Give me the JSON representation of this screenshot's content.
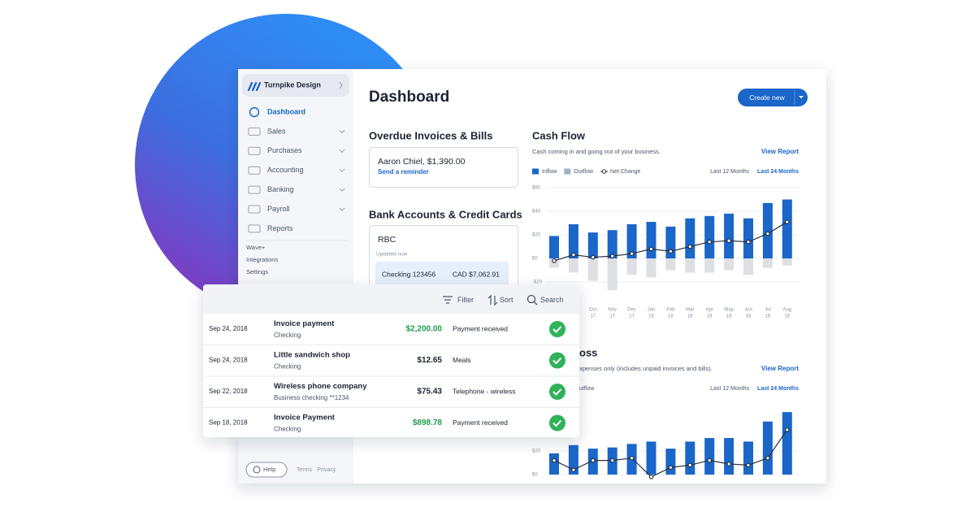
{
  "sidebar": {
    "company": "Turnpike Design",
    "nav": [
      "Dashboard",
      "Sales",
      "Purchases",
      "Accounting",
      "Banking",
      "Payroll",
      "Reports"
    ],
    "links": [
      "Wave+",
      "Integrations",
      "Settings"
    ],
    "help": "Help",
    "footer": "Terms · Privacy"
  },
  "header": {
    "title": "Dashboard",
    "button": "Create new"
  },
  "overdue": {
    "title": "Overdue Invoices & Bills",
    "item": "Aaron Chiel, $1,390.00",
    "action": "Send a reminder"
  },
  "bank": {
    "title": "Bank Accounts & Credit Cards",
    "name": "RBC",
    "status": "Updated now",
    "account": "Checking 123456",
    "balance": "CAD $7,062.91"
  },
  "transactions": {
    "toolbar": [
      "Filter",
      "Sort",
      "Search"
    ],
    "rows": [
      {
        "date": "Sep 24, 2018",
        "payee": "Invoice payment",
        "account": "Checking",
        "amount": "$2,200.00",
        "color": "#1e9e4a",
        "category": "Payment received"
      },
      {
        "date": "Sep 24, 2018",
        "payee": "Little sandwich shop",
        "account": "Checking",
        "amount": "$12.65",
        "color": "#1c2333",
        "category": "Meals"
      },
      {
        "date": "Sep 22, 2018",
        "payee": "Wireless phone company",
        "account": "Business checking **1234",
        "amount": "$75.43",
        "color": "#1c2333",
        "category": "Telephone - wireless"
      },
      {
        "date": "Sep 18, 2018",
        "payee": "Invoice Payment",
        "account": "Checking",
        "amount": "$898.78",
        "color": "#1e9e4a",
        "category": "Payment received"
      }
    ]
  },
  "chart_data": [
    {
      "type": "bar",
      "title": "Cash Flow",
      "subtitle": "Cash coming in and going out of your business.",
      "link": "View Report",
      "ranges": [
        "Last 12 Months",
        "Last 24 Months"
      ],
      "months": [
        null,
        null,
        "Oct",
        "Nov",
        "Dec",
        "Jan",
        "Feb",
        "Mar",
        "Apr",
        "May",
        "Jun",
        "Jul",
        "Aug"
      ],
      "years": [
        null,
        null,
        "17",
        "17",
        "17",
        "18",
        "18",
        "18",
        "18",
        "18",
        "18",
        "18",
        "18"
      ],
      "series": [
        {
          "name": "Inflow",
          "color": "#1a66c9",
          "values": [
            19,
            29,
            22,
            24,
            29,
            31,
            27,
            34,
            36,
            38,
            34,
            47,
            50
          ]
        },
        {
          "name": "Outflow",
          "color": "#dddfe3",
          "values": [
            -8,
            -12,
            -19,
            -27,
            -14,
            -16,
            -10,
            -12,
            -12,
            -10,
            -14,
            -8,
            -6
          ]
        },
        {
          "name": "Net Change",
          "color": "#2b2f38",
          "type": "line",
          "values": [
            -2,
            3,
            1,
            2,
            4,
            8,
            6,
            10,
            14,
            15,
            14,
            21,
            31
          ]
        }
      ],
      "ylim": [
        -30,
        60
      ],
      "yticks": [
        {
          "value": 60,
          "label": "$60"
        },
        {
          "value": 40,
          "label": "$40"
        },
        {
          "value": 20,
          "label": "$20"
        },
        {
          "value": 0,
          "label": "$0"
        },
        {
          "value": -20,
          "label": "-$20"
        }
      ],
      "grid": true
    },
    {
      "type": "bar",
      "title": "oss",
      "subtitle": "xpenses only (includes unpaid invoices and bills).",
      "link": "View Report",
      "legend": "utflow",
      "ranges": [
        "Last 12 Months",
        "Last 24 Months"
      ],
      "series": [
        {
          "color": "#1a66c9",
          "values": [
            18,
            25,
            22,
            23,
            26,
            28,
            22,
            28,
            31,
            31,
            28,
            45,
            53
          ]
        },
        {
          "color": "#2b2f38",
          "type": "line",
          "values": [
            12,
            4,
            12,
            12,
            14,
            -2,
            6,
            8,
            12,
            9,
            8,
            14,
            38
          ]
        }
      ],
      "ylim": [
        -5,
        60
      ],
      "yticks": [
        {
          "value": 20,
          "label": "$20"
        },
        {
          "value": 0,
          "label": "$0"
        }
      ],
      "grid": true
    }
  ]
}
